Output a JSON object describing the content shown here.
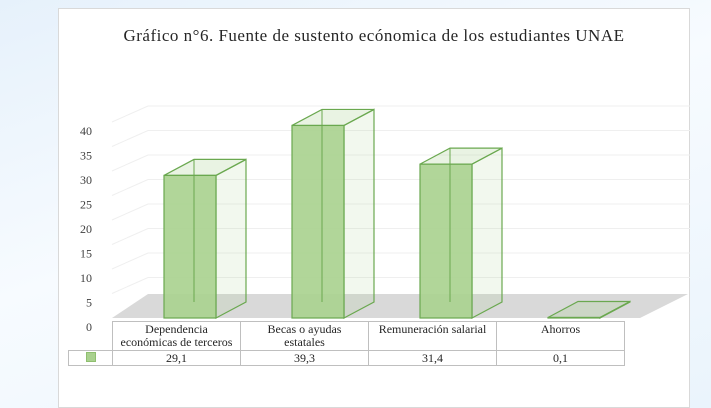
{
  "chart_data": {
    "type": "bar3d",
    "title": "Gráfico n°6. Fuente de sustento ecónomica de los estudiantes UNAE",
    "categories": [
      "Dependencia económicas de terceros",
      "Becas o ayudas estatales",
      "Remuneración salarial",
      "Ahorros"
    ],
    "values": [
      29.1,
      39.3,
      31.4,
      0.1
    ],
    "value_labels": [
      "29,1",
      "39,3",
      "31,4",
      "0,1"
    ],
    "color": "#a9d18e",
    "ylim": [
      0,
      40
    ],
    "yticks": [
      0,
      5,
      10,
      15,
      20,
      25,
      30,
      35,
      40
    ],
    "grid": true
  }
}
